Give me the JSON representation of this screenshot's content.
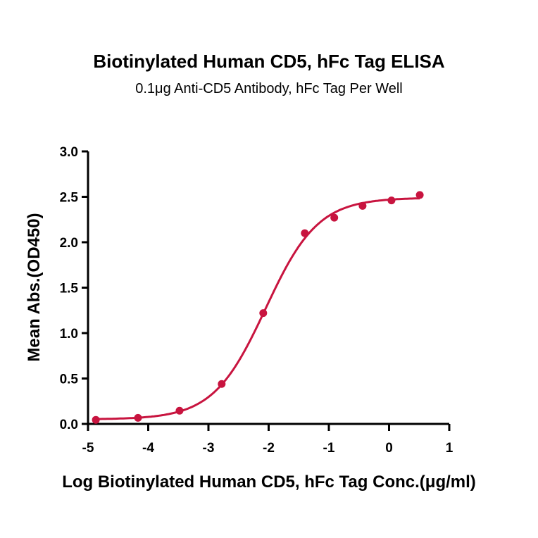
{
  "chart_data": {
    "type": "scatter",
    "title": "Biotinylated Human CD5, hFc Tag ELISA",
    "subtitle": "0.1μg Anti-CD5 Antibody, hFc Tag Per Well",
    "xlabel": "Log Biotinylated Human CD5, hFc Tag Conc.(μg/ml)",
    "ylabel": "Mean Abs.(OD450)",
    "xlim": [
      -5,
      1
    ],
    "ylim": [
      0,
      3.0
    ],
    "xticks": [
      "-5",
      "-4",
      "-3",
      "-2",
      "-1",
      "0",
      "1"
    ],
    "yticks": [
      "0.0",
      "0.5",
      "1.0",
      "1.5",
      "2.0",
      "2.5",
      "3.0"
    ],
    "grid": false,
    "color": "#c8143f",
    "fit_curve": "sigmoidal",
    "x": [
      -4.87,
      -4.17,
      -3.48,
      -2.78,
      -2.09,
      -1.4,
      -0.91,
      -0.44,
      0.04,
      0.51
    ],
    "y": [
      0.045,
      0.067,
      0.145,
      0.44,
      1.22,
      2.1,
      2.27,
      2.4,
      2.46,
      2.52
    ]
  }
}
